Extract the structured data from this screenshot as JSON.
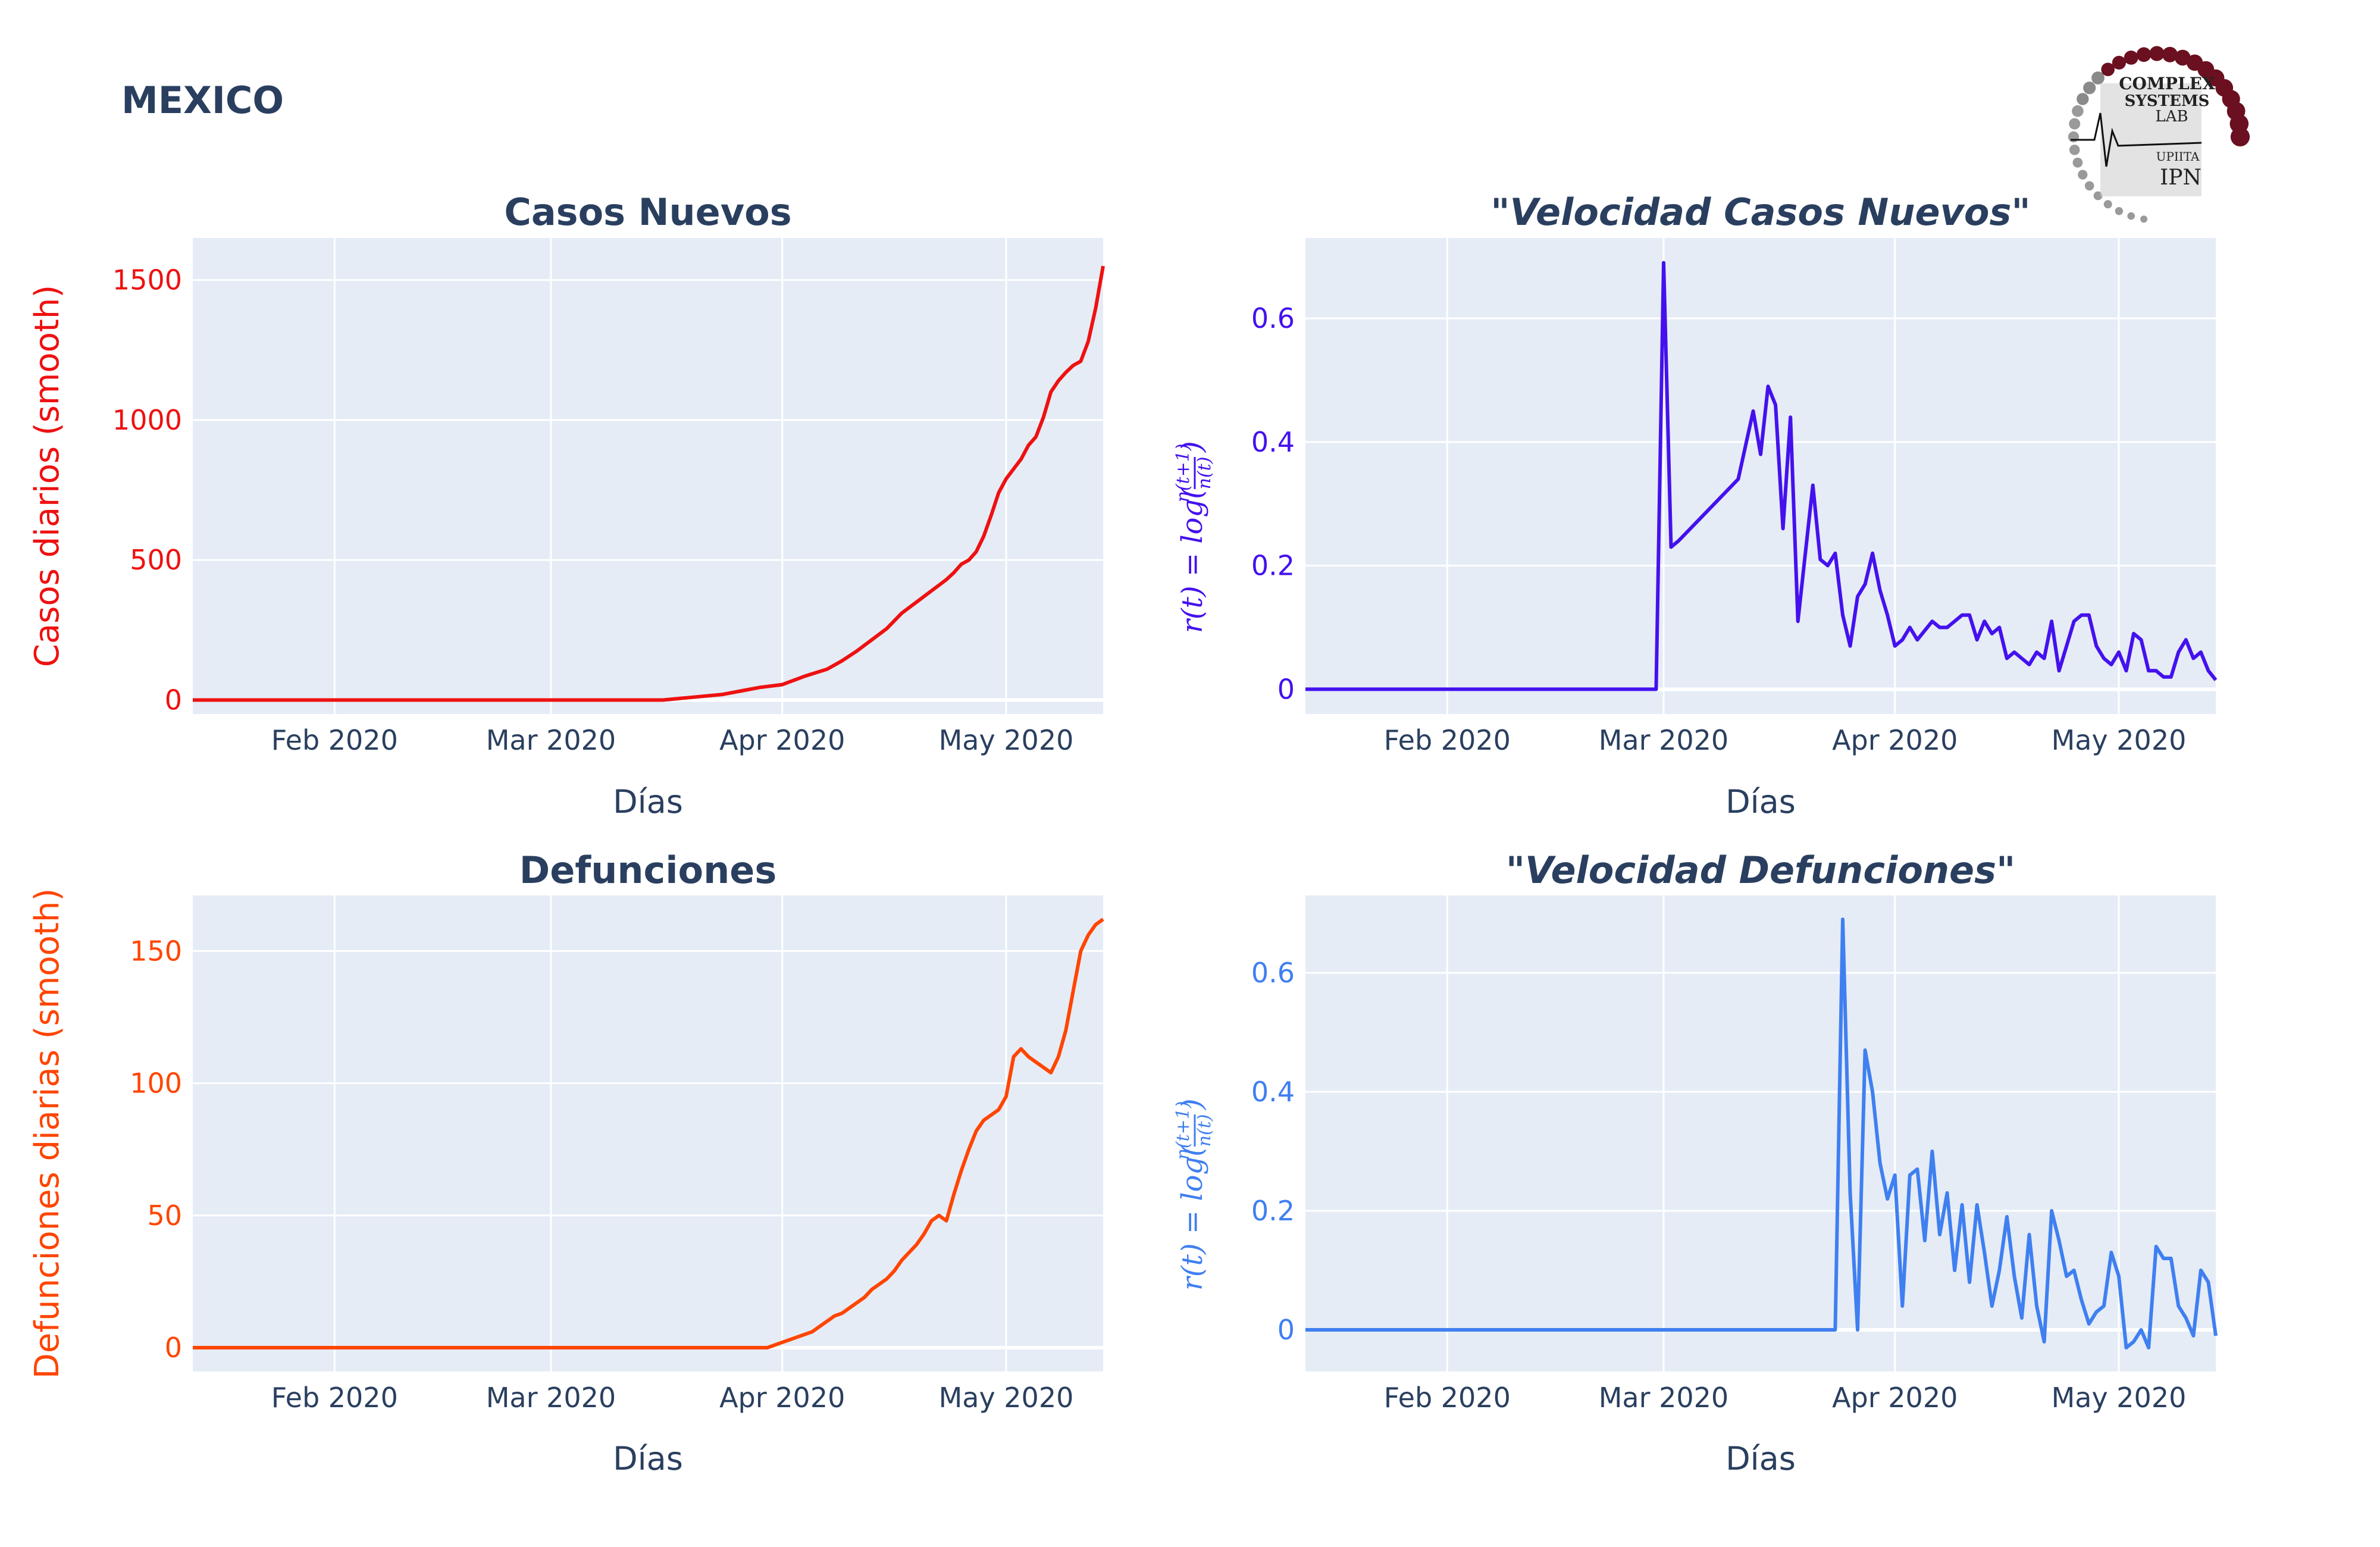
{
  "page_title": "MEXICO",
  "logo": {
    "line1": "COMPLEX",
    "line2": "SYSTEMS",
    "line3": "LAB",
    "line4": "UPIITA",
    "line5": "IPN"
  },
  "chart_data": [
    {
      "id": "casos",
      "type": "line",
      "title": "Casos Nuevos",
      "title_italic": false,
      "xlabel": "Días",
      "ylabel": "Casos diarios (smooth)",
      "color": "#ee1111",
      "xlim": [
        "2020-01-13",
        "2020-05-14"
      ],
      "ylim": [
        -50,
        1650
      ],
      "yticks": [
        0,
        500,
        1000,
        1500
      ],
      "ytick_labels": [
        "0",
        "500",
        "1000",
        "1500"
      ],
      "xticks": [
        "2020-02-01",
        "2020-03-01",
        "2020-04-01",
        "2020-05-01"
      ],
      "xtick_labels": [
        "Feb 2020",
        "Mar 2020",
        "Apr 2020",
        "May 2020"
      ],
      "x": [
        "2020-01-13",
        "2020-03-01",
        "2020-03-16",
        "2020-03-20",
        "2020-03-24",
        "2020-03-27",
        "2020-03-29",
        "2020-04-01",
        "2020-04-04",
        "2020-04-07",
        "2020-04-09",
        "2020-04-11",
        "2020-04-13",
        "2020-04-15",
        "2020-04-17",
        "2020-04-19",
        "2020-04-21",
        "2020-04-23",
        "2020-04-24",
        "2020-04-25",
        "2020-04-26",
        "2020-04-27",
        "2020-04-28",
        "2020-04-29",
        "2020-04-30",
        "2020-05-01",
        "2020-05-02",
        "2020-05-03",
        "2020-05-04",
        "2020-05-05",
        "2020-05-06",
        "2020-05-07",
        "2020-05-08",
        "2020-05-09",
        "2020-05-10",
        "2020-05-11",
        "2020-05-12",
        "2020-05-13",
        "2020-05-14"
      ],
      "y": [
        0,
        0,
        0,
        10,
        20,
        35,
        45,
        55,
        85,
        110,
        140,
        175,
        215,
        255,
        310,
        350,
        390,
        430,
        455,
        485,
        500,
        530,
        585,
        660,
        740,
        790,
        825,
        860,
        910,
        940,
        1010,
        1100,
        1140,
        1170,
        1195,
        1210,
        1280,
        1400,
        1470
      ],
      "y_ext": [
        1550
      ]
    },
    {
      "id": "vel_casos",
      "type": "line",
      "title": "\"Velocidad Casos Nuevos\"",
      "title_italic": true,
      "xlabel": "Días",
      "ylabel": "r(t) = log(n(t+1)/n(t))",
      "ylabel_main": "r(t) = log(",
      "ylabel_num": "n(t+1)",
      "ylabel_den": "n(t)",
      "color": "#4411ee",
      "xlim": [
        "2020-01-13",
        "2020-05-14"
      ],
      "ylim": [
        -0.04,
        0.73
      ],
      "yticks": [
        0,
        0.2,
        0.4,
        0.6
      ],
      "ytick_labels": [
        "0",
        "0.2",
        "0.4",
        "0.6"
      ],
      "xticks": [
        "2020-02-01",
        "2020-03-01",
        "2020-04-01",
        "2020-05-01"
      ],
      "xtick_labels": [
        "Feb 2020",
        "Mar 2020",
        "Apr 2020",
        "May 2020"
      ],
      "x": [
        "2020-01-13",
        "2020-02-29",
        "2020-03-01",
        "2020-03-02",
        "2020-03-03",
        "2020-03-11",
        "2020-03-13",
        "2020-03-14",
        "2020-03-15",
        "2020-03-16",
        "2020-03-17",
        "2020-03-18",
        "2020-03-19",
        "2020-03-20",
        "2020-03-21",
        "2020-03-22",
        "2020-03-23",
        "2020-03-24",
        "2020-03-25",
        "2020-03-26",
        "2020-03-27",
        "2020-03-28",
        "2020-03-29",
        "2020-03-30",
        "2020-03-31",
        "2020-04-01",
        "2020-04-02",
        "2020-04-03",
        "2020-04-04",
        "2020-04-06",
        "2020-04-07",
        "2020-04-08",
        "2020-04-09",
        "2020-04-10",
        "2020-04-11",
        "2020-04-12",
        "2020-04-13",
        "2020-04-14",
        "2020-04-15",
        "2020-04-16",
        "2020-04-17",
        "2020-04-18",
        "2020-04-19",
        "2020-04-20",
        "2020-04-21",
        "2020-04-22",
        "2020-04-23",
        "2020-04-24",
        "2020-04-25",
        "2020-04-26",
        "2020-04-27",
        "2020-04-28",
        "2020-04-29",
        "2020-04-30",
        "2020-05-01",
        "2020-05-02",
        "2020-05-03",
        "2020-05-04",
        "2020-05-05",
        "2020-05-06",
        "2020-05-07",
        "2020-05-08",
        "2020-05-09",
        "2020-05-10",
        "2020-05-11",
        "2020-05-12",
        "2020-05-13",
        "2020-05-14"
      ],
      "y": [
        0,
        0,
        0.69,
        0.23,
        0.24,
        0.34,
        0.45,
        0.38,
        0.49,
        0.46,
        0.26,
        0.44,
        0.11,
        0.22,
        0.33,
        0.21,
        0.2,
        0.22,
        0.12,
        0.07,
        0.15,
        0.17,
        0.22,
        0.16,
        0.12,
        0.07,
        0.08,
        0.1,
        0.08,
        0.11,
        0.1,
        0.1,
        0.11,
        0.12,
        0.12,
        0.08,
        0.11,
        0.09,
        0.1,
        0.05,
        0.06,
        0.05,
        0.04,
        0.06,
        0.05,
        0.11,
        0.03,
        0.07,
        0.11,
        0.12,
        0.12,
        0.07,
        0.05,
        0.04,
        0.06,
        0.03,
        0.09,
        0.08,
        0.03,
        0.03,
        0.02,
        0.02,
        0.06,
        0.08,
        0.05,
        0.06,
        0.03,
        0.015
      ]
    },
    {
      "id": "defunciones",
      "type": "line",
      "title": "Defunciones",
      "title_italic": false,
      "xlabel": "Días",
      "ylabel": "Defunciones diarias (smooth)",
      "color": "#ff4500",
      "xlim": [
        "2020-01-13",
        "2020-05-14"
      ],
      "ylim": [
        -9,
        171
      ],
      "yticks": [
        0,
        50,
        100,
        150
      ],
      "ytick_labels": [
        "0",
        "50",
        "100",
        "150"
      ],
      "xticks": [
        "2020-02-01",
        "2020-03-01",
        "2020-04-01",
        "2020-05-01"
      ],
      "xtick_labels": [
        "Feb 2020",
        "Mar 2020",
        "Apr 2020",
        "May 2020"
      ],
      "x": [
        "2020-01-13",
        "2020-03-01",
        "2020-03-30",
        "2020-04-01",
        "2020-04-03",
        "2020-04-05",
        "2020-04-06",
        "2020-04-07",
        "2020-04-08",
        "2020-04-09",
        "2020-04-10",
        "2020-04-11",
        "2020-04-12",
        "2020-04-13",
        "2020-04-14",
        "2020-04-15",
        "2020-04-16",
        "2020-04-17",
        "2020-04-18",
        "2020-04-19",
        "2020-04-20",
        "2020-04-21",
        "2020-04-22",
        "2020-04-23",
        "2020-04-24",
        "2020-04-25",
        "2020-04-26",
        "2020-04-27",
        "2020-04-28",
        "2020-04-29",
        "2020-04-30",
        "2020-05-01",
        "2020-05-02",
        "2020-05-03",
        "2020-05-04",
        "2020-05-05",
        "2020-05-06",
        "2020-05-07",
        "2020-05-08",
        "2020-05-09",
        "2020-05-10",
        "2020-05-11",
        "2020-05-12",
        "2020-05-13",
        "2020-05-14"
      ],
      "y": [
        0,
        0,
        0,
        2,
        4,
        6,
        8,
        10,
        12,
        13,
        15,
        17,
        19,
        22,
        24,
        26,
        29,
        33,
        36,
        39,
        43,
        48,
        50,
        48,
        58,
        67,
        75,
        82,
        86,
        88,
        90,
        95,
        110,
        113,
        110,
        108,
        106,
        104,
        110,
        120,
        135,
        150,
        156,
        160,
        162
      ]
    },
    {
      "id": "vel_def",
      "type": "line",
      "title": "\"Velocidad Defunciones\"",
      "title_italic": true,
      "xlabel": "Días",
      "ylabel": "r(t) = log(n(t+1)/n(t))",
      "ylabel_main": "r(t) = log(",
      "ylabel_num": "n(t+1)",
      "ylabel_den": "n(t)",
      "color": "#3f7ff0",
      "xlim": [
        "2020-01-13",
        "2020-05-14"
      ],
      "ylim": [
        -0.07,
        0.73
      ],
      "yticks": [
        0,
        0.2,
        0.4,
        0.6
      ],
      "ytick_labels": [
        "0",
        "0.2",
        "0.4",
        "0.6"
      ],
      "xticks": [
        "2020-02-01",
        "2020-03-01",
        "2020-04-01",
        "2020-05-01"
      ],
      "xtick_labels": [
        "Feb 2020",
        "Mar 2020",
        "Apr 2020",
        "May 2020"
      ],
      "x": [
        "2020-01-13",
        "2020-03-24",
        "2020-03-25",
        "2020-03-26",
        "2020-03-27",
        "2020-03-28",
        "2020-03-29",
        "2020-03-30",
        "2020-03-31",
        "2020-04-01",
        "2020-04-02",
        "2020-04-03",
        "2020-04-04",
        "2020-04-05",
        "2020-04-06",
        "2020-04-07",
        "2020-04-08",
        "2020-04-09",
        "2020-04-10",
        "2020-04-11",
        "2020-04-12",
        "2020-04-13",
        "2020-04-14",
        "2020-04-15",
        "2020-04-16",
        "2020-04-17",
        "2020-04-18",
        "2020-04-19",
        "2020-04-20",
        "2020-04-21",
        "2020-04-22",
        "2020-04-23",
        "2020-04-24",
        "2020-04-25",
        "2020-04-26",
        "2020-04-27",
        "2020-04-28",
        "2020-04-29",
        "2020-04-30",
        "2020-05-01",
        "2020-05-02",
        "2020-05-03",
        "2020-05-04",
        "2020-05-05",
        "2020-05-06",
        "2020-05-07",
        "2020-05-08",
        "2020-05-09",
        "2020-05-10",
        "2020-05-11",
        "2020-05-12",
        "2020-05-13",
        "2020-05-14"
      ],
      "y": [
        0,
        0,
        0.69,
        0.23,
        0,
        0.47,
        0.4,
        0.28,
        0.22,
        0.26,
        0.04,
        0.26,
        0.27,
        0.15,
        0.3,
        0.16,
        0.23,
        0.1,
        0.21,
        0.08,
        0.21,
        0.13,
        0.04,
        0.1,
        0.19,
        0.09,
        0.02,
        0.16,
        0.04,
        -0.02,
        0.2,
        0.15,
        0.09,
        0.1,
        0.05,
        0.01,
        0.03,
        0.04,
        0.13,
        0.09,
        -0.03,
        -0.02,
        0,
        -0.03,
        0.14,
        0.12,
        0.12,
        0.04,
        0.02,
        -0.01,
        0.1,
        0.08,
        -0.01
      ]
    }
  ]
}
